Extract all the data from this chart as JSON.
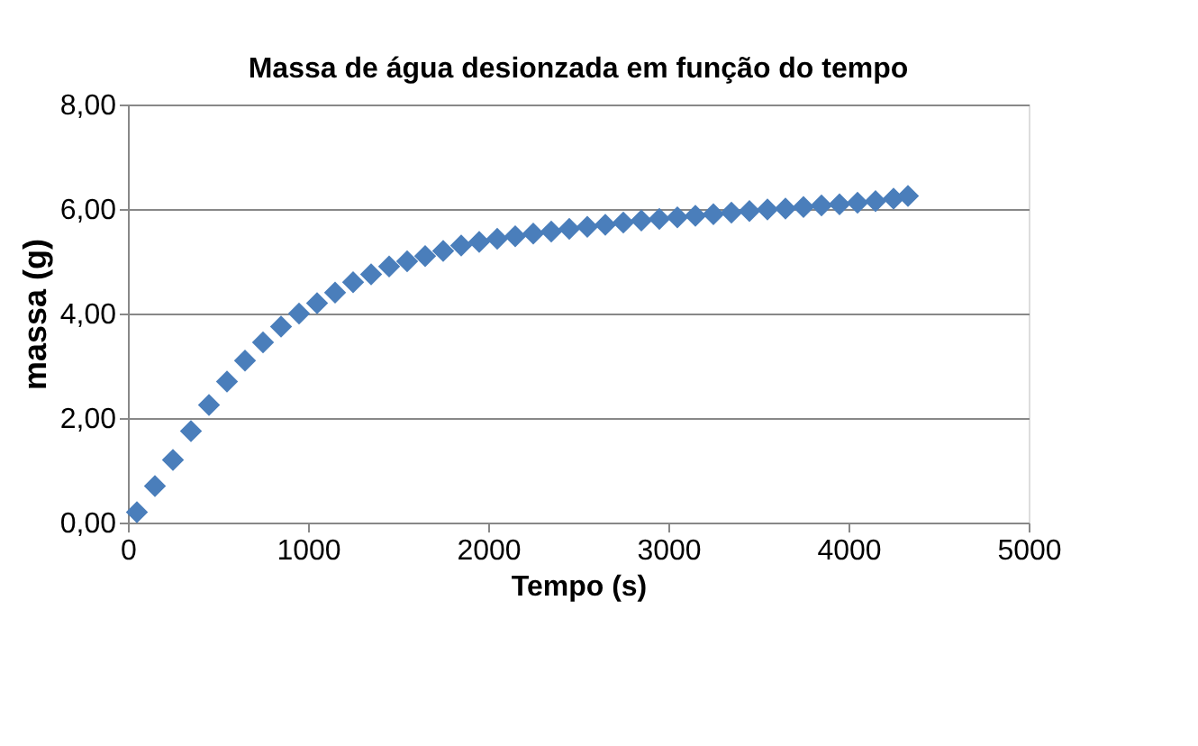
{
  "chart_data": {
    "type": "scatter",
    "title": "Massa de água desionzada em função do tempo",
    "xlabel": "Tempo (s)",
    "ylabel": "massa (g)",
    "x": [
      50,
      150,
      250,
      350,
      450,
      550,
      650,
      750,
      850,
      950,
      1050,
      1150,
      1250,
      1350,
      1450,
      1550,
      1650,
      1750,
      1850,
      1950,
      2050,
      2150,
      2250,
      2350,
      2450,
      2550,
      2650,
      2750,
      2850,
      2950,
      3050,
      3150,
      3250,
      3350,
      3450,
      3550,
      3650,
      3750,
      3850,
      3950,
      4050,
      4150,
      4250,
      4330
    ],
    "series": [
      {
        "color": "#4a7ebb",
        "values": [
          0.2,
          0.7,
          1.2,
          1.75,
          2.25,
          2.7,
          3.1,
          3.45,
          3.75,
          4.0,
          4.2,
          4.4,
          4.6,
          4.75,
          4.9,
          5.0,
          5.1,
          5.2,
          5.3,
          5.37,
          5.43,
          5.48,
          5.53,
          5.57,
          5.62,
          5.66,
          5.7,
          5.74,
          5.78,
          5.81,
          5.84,
          5.87,
          5.9,
          5.93,
          5.96,
          5.99,
          6.01,
          6.04,
          6.07,
          6.09,
          6.12,
          6.15,
          6.2,
          6.25
        ]
      }
    ],
    "xlim": [
      0,
      5000
    ],
    "xticks": [
      0,
      1000,
      2000,
      3000,
      4000,
      5000
    ],
    "ylim": [
      0,
      8
    ],
    "yticks": [
      {
        "value": 0,
        "label": "0,00"
      },
      {
        "value": 2,
        "label": "2,00"
      },
      {
        "value": 4,
        "label": "4,00"
      },
      {
        "value": 6,
        "label": "6,00"
      },
      {
        "value": 8,
        "label": "8,00"
      }
    ],
    "grid": "y",
    "marker": "diamond"
  }
}
